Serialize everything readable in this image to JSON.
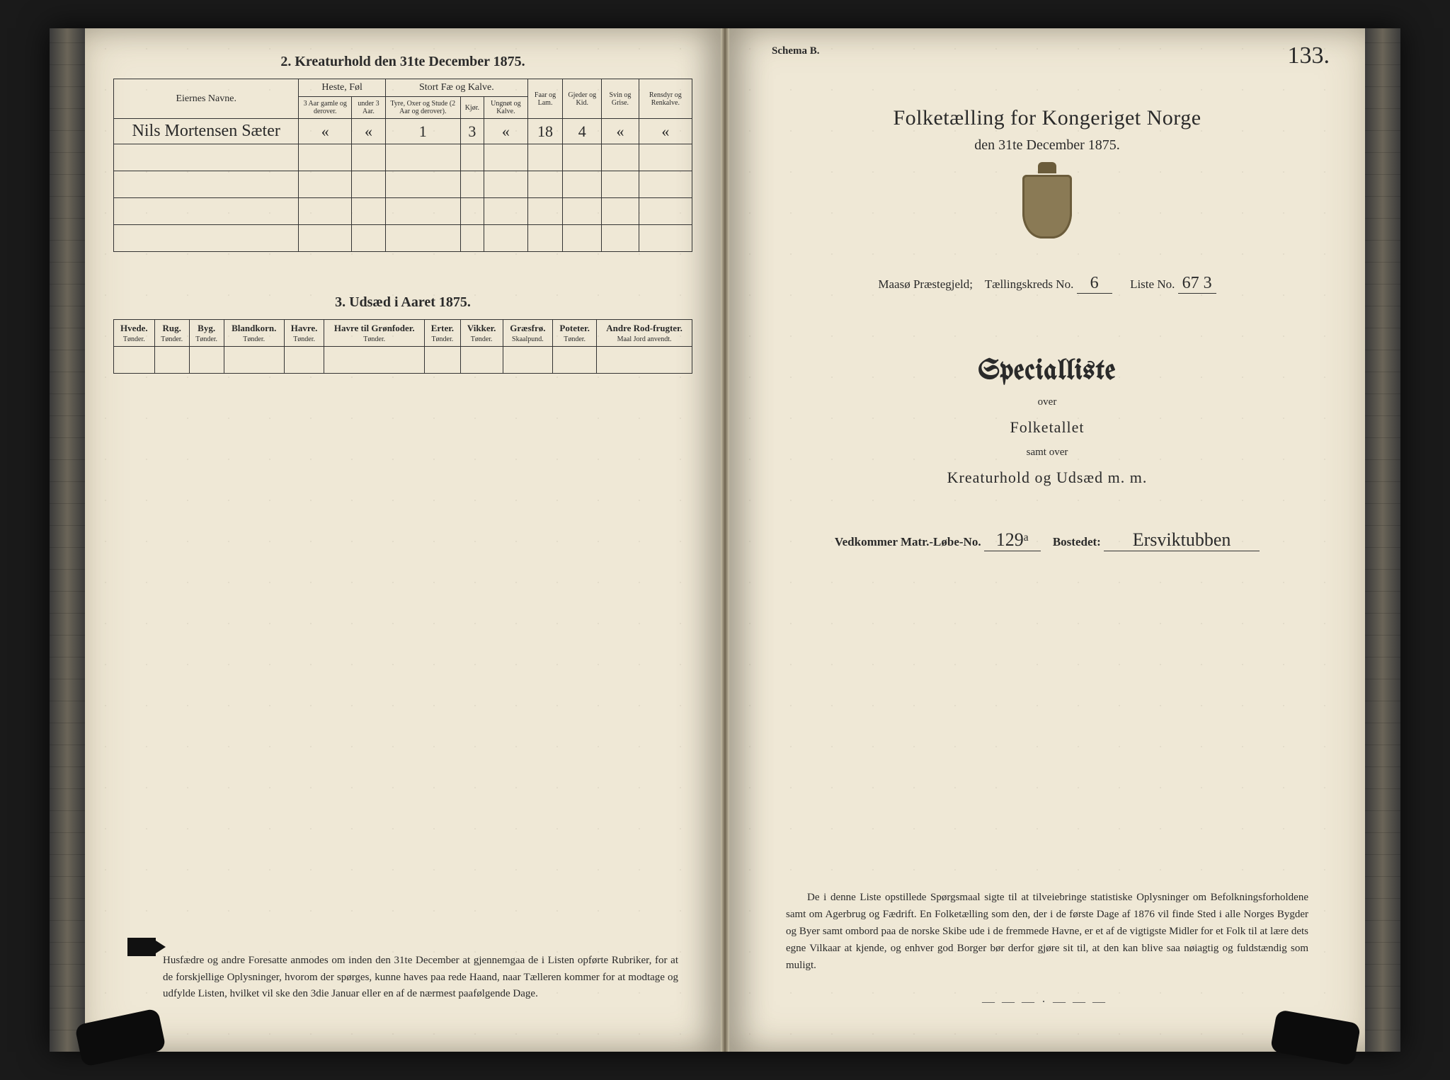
{
  "leftPage": {
    "section2": {
      "title": "2.  Kreaturhold den 31te December 1875.",
      "columns": {
        "name": "Eiernes Navne.",
        "group_horses": "Heste, Føl",
        "horses_old": "3 Aar gamle og derover.",
        "horses_young": "under 3 Aar.",
        "group_cattle": "Stort Fæ og Kalve.",
        "cattle_bulls": "Tyre, Oxer og Stude (2 Aar og derover).",
        "cattle_cows": "Kjør.",
        "cattle_young": "Ungnøt og Kalve.",
        "sheep": "Faar og Lam.",
        "goats": "Gjeder og Kid.",
        "pigs": "Svin og Grise.",
        "reindeer": "Rensdyr og Renkalve."
      },
      "row": {
        "name": "Nils Mortensen Sæter",
        "horses_old": "«",
        "horses_young": "«",
        "cattle_bulls": "1",
        "cattle_cows": "3",
        "cattle_young": "«",
        "sheep": "18",
        "goats": "4",
        "pigs": "«",
        "reindeer": "«"
      }
    },
    "section3": {
      "title": "3.  Udsæd i Aaret 1875.",
      "columns": [
        {
          "h": "Hvede.",
          "u": "Tønder."
        },
        {
          "h": "Rug.",
          "u": "Tønder."
        },
        {
          "h": "Byg.",
          "u": "Tønder."
        },
        {
          "h": "Blandkorn.",
          "u": "Tønder."
        },
        {
          "h": "Havre.",
          "u": "Tønder."
        },
        {
          "h": "Havre til Grønfoder.",
          "u": "Tønder."
        },
        {
          "h": "Erter.",
          "u": "Tønder."
        },
        {
          "h": "Vikker.",
          "u": "Tønder."
        },
        {
          "h": "Græsfrø.",
          "u": "Skaalpund."
        },
        {
          "h": "Poteter.",
          "u": "Tønder."
        },
        {
          "h": "Andre Rod-frugter.",
          "u": "Maal Jord anvendt."
        }
      ]
    },
    "footnote": "Husfædre og andre Foresatte anmodes om inden den 31te December at gjennemgaa de i Listen opførte Rubriker, for at de forskjellige Oplysninger, hvorom der spørges, kunne haves paa rede Haand, naar Tælleren kommer for at modtage og udfylde Listen, hvilket vil ske den 3die Januar eller en af de nærmest paafølgende Dage."
  },
  "rightPage": {
    "schema": "Schema B.",
    "folio": "133.",
    "title": "Folketælling for Kongeriget Norge",
    "subtitle": "den 31te December 1875.",
    "meta": {
      "prestegjeld_label": "Maasø Præstegjeld;",
      "kreds_label": "Tællingskreds No.",
      "kreds_value": "6",
      "liste_label": "Liste No.",
      "liste_value": "67 3"
    },
    "special": {
      "big": "Specialliste",
      "over": "over",
      "folketallet": "Folketallet",
      "samt": "samt over",
      "kreatur": "Kreaturhold og Udsæd m. m."
    },
    "matr": {
      "label1": "Vedkommer Matr.-Løbe-No.",
      "val1": "129ᵃ",
      "label2": "Bostedet:",
      "val2": "Ersviktubben"
    },
    "paragraph": "De i denne Liste opstillede Spørgsmaal sigte til at tilveiebringe statistiske Oplysninger om Befolkningsforholdene samt om Agerbrug og Fædrift.  En Folketælling som den, der i de første Dage af 1876 vil finde Sted i alle Norges Bygder og Byer samt ombord paa de norske Skibe ude i de fremmede Havne, er et af de vigtigste Midler for et Folk til at lære dets egne Vilkaar at kjende, og enhver god Borger bør derfor gjøre sit til, at den kan blive saa nøiagtig og fuldstændig som muligt.",
    "ornament": "―――·―――"
  },
  "colors": {
    "paper": "#efe8d6",
    "ink": "#2a2a2a",
    "background": "#1a1a1a"
  }
}
